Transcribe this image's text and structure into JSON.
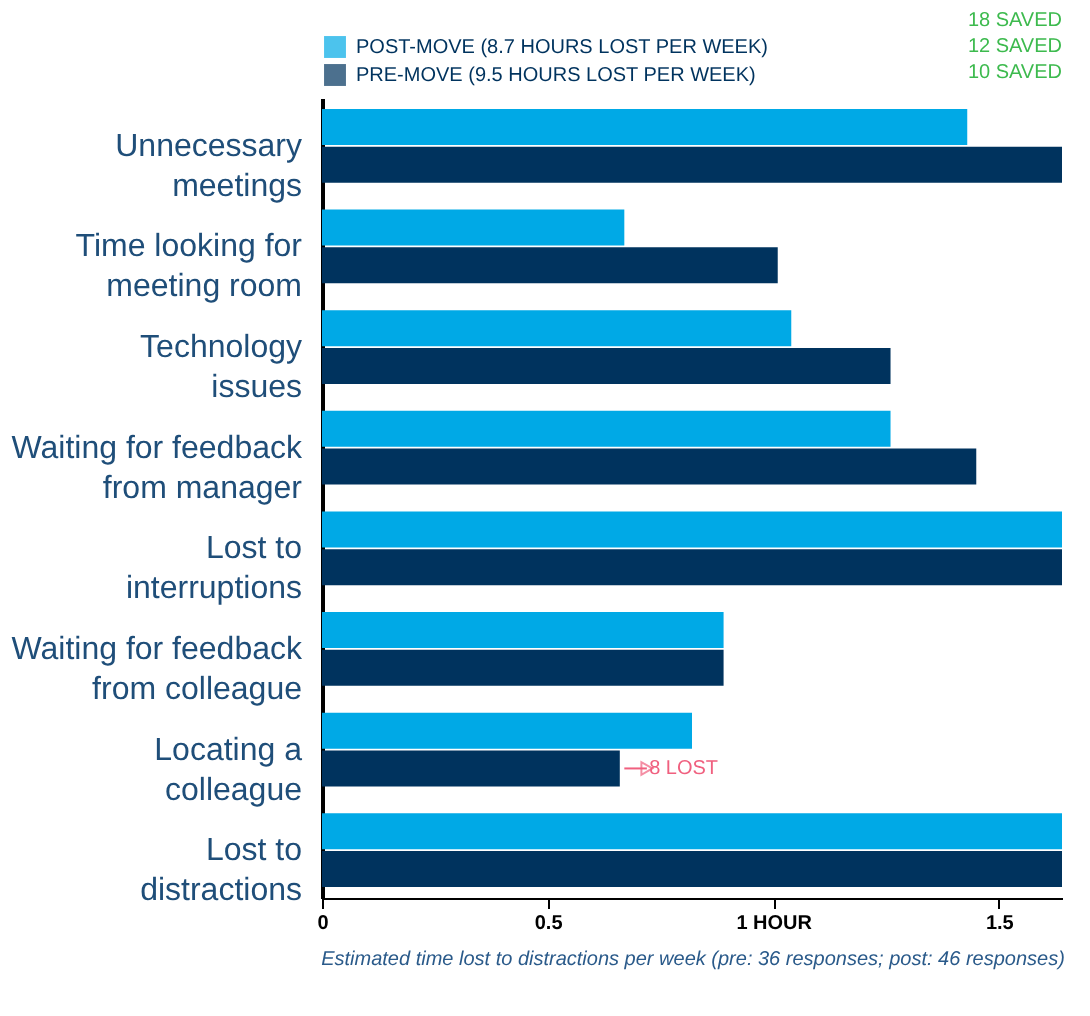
{
  "chart_data": {
    "type": "bar",
    "orientation": "horizontal",
    "categories": [
      "Unnecessary meetings",
      "Time looking for meeting room",
      "Technology issues",
      "Waiting for feedback from manager",
      "Lost to interruptions",
      "Waiting for feedback from colleague",
      "Locating a colleague",
      "Lost to distractions"
    ],
    "series": [
      {
        "name": "POST-MOVE (8.7 HOURS LOST PER WEEK)",
        "color": "#00a9e6",
        "values": [
          1.43,
          0.67,
          1.04,
          1.26,
          1.64,
          0.89,
          0.82,
          1.64
        ]
      },
      {
        "name": "PRE-MOVE (9.5 HOURS LOST PER WEEK)",
        "color": "#00335e",
        "values": [
          1.64,
          1.01,
          1.26,
          1.45,
          1.64,
          0.89,
          0.66,
          1.64
        ]
      }
    ],
    "xlim": [
      0,
      1.64
    ],
    "xticks": [
      0,
      0.5,
      {
        "value": 1,
        "label": "1 HOUR"
      },
      1.5
    ],
    "xlabel": "Estimated time lost to distractions per week (pre: 36 responses; post: 46 responses)",
    "annotations": [
      "18 SAVED",
      "12 SAVED",
      "10 SAVED",
      {
        "text": "8 LOST",
        "x": 0.66,
        "y": "Locating a colleague"
      }
    ],
    "legend": "top left",
    "grid": false
  }
}
